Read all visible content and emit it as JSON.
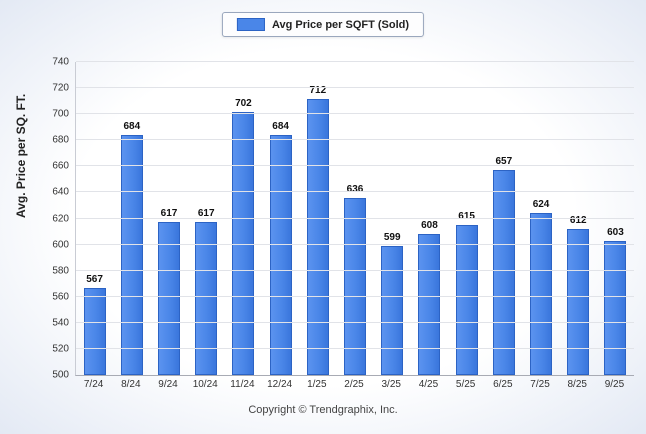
{
  "legend": {
    "label": "Avg Price per SQFT (Sold)",
    "swatch_color": "#4a86e8"
  },
  "ylabel": "Avg. Price per SQ. FT.",
  "footer": "Copyright © Trendgraphix, Inc.",
  "chart_data": {
    "type": "bar",
    "title": "Avg Price per SQFT (Sold)",
    "categories": [
      "7/24",
      "8/24",
      "9/24",
      "10/24",
      "11/24",
      "12/24",
      "1/25",
      "2/25",
      "3/25",
      "4/25",
      "5/25",
      "6/25",
      "7/25",
      "8/25",
      "9/25"
    ],
    "values": [
      567,
      684,
      617,
      617,
      702,
      684,
      712,
      636,
      599,
      608,
      615,
      657,
      624,
      612,
      603
    ],
    "xlabel": "",
    "ylabel": "Avg. Price per SQ. FT.",
    "ylim": [
      500,
      740
    ],
    "ytick_step": 20,
    "grid": true,
    "legend_position": "top",
    "bar_color": "#4a86e8"
  }
}
